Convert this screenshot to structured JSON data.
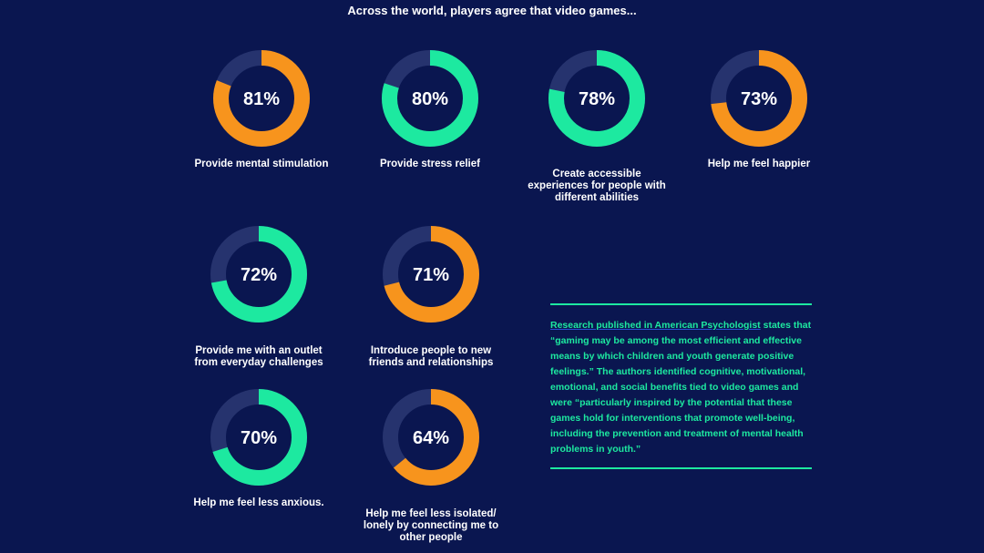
{
  "chart_data": {
    "type": "donut",
    "title": "Across the world, players agree that video games...",
    "colors": {
      "orange": "#f7941d",
      "green": "#1de9a0",
      "track": "#26336e",
      "background": "#0a1650"
    },
    "items": [
      {
        "value": 81,
        "label": "81%",
        "text": "Provide mental stimulation",
        "color": "#f7941d"
      },
      {
        "value": 80,
        "label": "80%",
        "text": "Provide stress relief",
        "color": "#1de9a0"
      },
      {
        "value": 78,
        "label": "78%",
        "text": "Create accessible\nexperiences for people with\ndifferent abilities",
        "color": "#1de9a0"
      },
      {
        "value": 73,
        "label": "73%",
        "text": "Help me feel happier",
        "color": "#f7941d"
      },
      {
        "value": 72,
        "label": "72%",
        "text": "Provide me with an outlet\nfrom everyday challenges",
        "color": "#1de9a0"
      },
      {
        "value": 71,
        "label": "71%",
        "text": "Introduce people to new\nfriends and relationships",
        "color": "#f7941d"
      },
      {
        "value": 70,
        "label": "70%",
        "text": "Help me feel less anxious.",
        "color": "#1de9a0"
      },
      {
        "value": 64,
        "label": "64%",
        "text": "Help me feel less isolated/\nlonely by connecting me to\nother people",
        "color": "#f7941d"
      }
    ]
  },
  "quote": {
    "link_text": "Research published in American Psychologist",
    "body": " states that “gaming may be among the most efficient and effective means by which children and youth generate positive feelings.” The authors identified cognitive, motivational, emotional, and social benefits tied to video games and were “particularly inspired by the potential that these games hold for interventions that promote well-being, including the prevention and treatment of mental health problems in youth.”"
  }
}
